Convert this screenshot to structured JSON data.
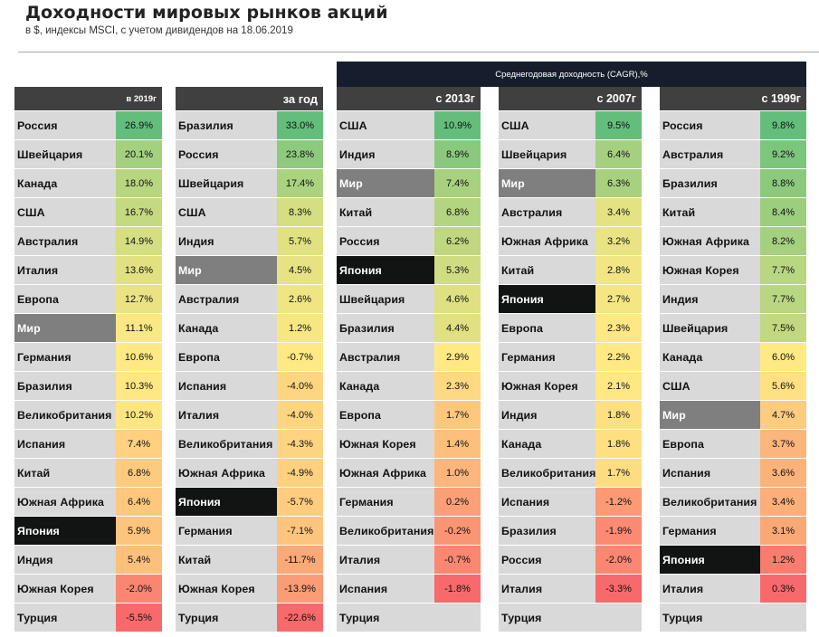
{
  "header": {
    "title": "Доходности мировых рынков акций",
    "subtitle": "в $, индексы MSCI, с учетом дивидендов на 18.06.2019",
    "cagr_label": "Среднегодовая доходность (CAGR),%"
  },
  "colors": {
    "header_bg": "#404040",
    "cagr_bg": "#161e2e",
    "name_bg": "#d9d9d9",
    "world_bg": "#7f7f7f",
    "japan_bg": "#111412",
    "scale_high": "#63be7b",
    "scale_mid": "#ffe984",
    "scale_low": "#f8696b"
  },
  "chart_data": {
    "type": "table",
    "title": "Доходности мировых рынков акций",
    "subtitle": "в $, индексы MSCI, с учетом дивидендов на 18.06.2019",
    "group_label": "Среднегодовая доходность (CAGR),%",
    "tables": [
      {
        "header": "в 2019г",
        "rows": [
          {
            "name": "Россия",
            "value": "26.9%",
            "v": 26.9
          },
          {
            "name": "Швейцария",
            "value": "20.1%",
            "v": 20.1
          },
          {
            "name": "Канада",
            "value": "18.0%",
            "v": 18.0
          },
          {
            "name": "США",
            "value": "16.7%",
            "v": 16.7
          },
          {
            "name": "Австралия",
            "value": "14.9%",
            "v": 14.9
          },
          {
            "name": "Италия",
            "value": "13.6%",
            "v": 13.6
          },
          {
            "name": "Европа",
            "value": "12.7%",
            "v": 12.7
          },
          {
            "name": "Мир",
            "value": "11.1%",
            "v": 11.1
          },
          {
            "name": "Германия",
            "value": "10.6%",
            "v": 10.6
          },
          {
            "name": "Бразилия",
            "value": "10.3%",
            "v": 10.3
          },
          {
            "name": "Великобритания",
            "value": "10.2%",
            "v": 10.2
          },
          {
            "name": "Испания",
            "value": "7.4%",
            "v": 7.4
          },
          {
            "name": "Китай",
            "value": "6.8%",
            "v": 6.8
          },
          {
            "name": "Южная Африка",
            "value": "6.4%",
            "v": 6.4
          },
          {
            "name": "Япония",
            "value": "5.9%",
            "v": 5.9
          },
          {
            "name": "Индия",
            "value": "5.4%",
            "v": 5.4
          },
          {
            "name": "Южная Корея",
            "value": "-2.0%",
            "v": -2.0
          },
          {
            "name": "Турция",
            "value": "-5.5%",
            "v": -5.5
          }
        ]
      },
      {
        "header": "за год",
        "rows": [
          {
            "name": "Бразилия",
            "value": "33.0%",
            "v": 33.0
          },
          {
            "name": "Россия",
            "value": "23.8%",
            "v": 23.8
          },
          {
            "name": "Швейцария",
            "value": "17.4%",
            "v": 17.4
          },
          {
            "name": "США",
            "value": "8.3%",
            "v": 8.3
          },
          {
            "name": "Индия",
            "value": "5.7%",
            "v": 5.7
          },
          {
            "name": "Мир",
            "value": "4.5%",
            "v": 4.5
          },
          {
            "name": "Австралия",
            "value": "2.6%",
            "v": 2.6
          },
          {
            "name": "Канада",
            "value": "1.2%",
            "v": 1.2
          },
          {
            "name": "Европа",
            "value": "-0.7%",
            "v": -0.7
          },
          {
            "name": "Испания",
            "value": "-4.0%",
            "v": -4.0
          },
          {
            "name": "Италия",
            "value": "-4.0%",
            "v": -4.0
          },
          {
            "name": "Великобритания",
            "value": "-4.3%",
            "v": -4.3
          },
          {
            "name": "Южная Африка",
            "value": "-4.9%",
            "v": -4.9
          },
          {
            "name": "Япония",
            "value": "-5.7%",
            "v": -5.7
          },
          {
            "name": "Германия",
            "value": "-7.1%",
            "v": -7.1
          },
          {
            "name": "Китай",
            "value": "-11.7%",
            "v": -11.7
          },
          {
            "name": "Южная Корея",
            "value": "-13.9%",
            "v": -13.9
          },
          {
            "name": "Турция",
            "value": "-22.6%",
            "v": -22.6
          }
        ]
      },
      {
        "header": "с 2013г",
        "rows": [
          {
            "name": "США",
            "value": "10.9%",
            "v": 10.9
          },
          {
            "name": "Индия",
            "value": "8.9%",
            "v": 8.9
          },
          {
            "name": "Мир",
            "value": "7.4%",
            "v": 7.4
          },
          {
            "name": "Китай",
            "value": "6.8%",
            "v": 6.8
          },
          {
            "name": "Россия",
            "value": "6.2%",
            "v": 6.2
          },
          {
            "name": "Япония",
            "value": "5.3%",
            "v": 5.3
          },
          {
            "name": "Швейцария",
            "value": "4.6%",
            "v": 4.6
          },
          {
            "name": "Бразилия",
            "value": "4.4%",
            "v": 4.4
          },
          {
            "name": "Австралия",
            "value": "2.9%",
            "v": 2.9
          },
          {
            "name": "Канада",
            "value": "2.3%",
            "v": 2.3
          },
          {
            "name": "Европа",
            "value": "1.7%",
            "v": 1.7
          },
          {
            "name": "Южная Корея",
            "value": "1.4%",
            "v": 1.4
          },
          {
            "name": "Южная Африка",
            "value": "1.0%",
            "v": 1.0
          },
          {
            "name": "Германия",
            "value": "0.2%",
            "v": 0.2
          },
          {
            "name": "Великобритания",
            "value": "-0.2%",
            "v": -0.2
          },
          {
            "name": "Италия",
            "value": "-0.7%",
            "v": -0.7
          },
          {
            "name": "Испания",
            "value": "-1.8%",
            "v": -1.8
          },
          {
            "name": "Турция",
            "value": "",
            "v": null
          }
        ]
      },
      {
        "header": "с 2007г",
        "rows": [
          {
            "name": "США",
            "value": "9.5%",
            "v": 9.5
          },
          {
            "name": "Швейцария",
            "value": "6.4%",
            "v": 6.4
          },
          {
            "name": "Мир",
            "value": "6.3%",
            "v": 6.3
          },
          {
            "name": "Австралия",
            "value": "3.4%",
            "v": 3.4
          },
          {
            "name": "Южная Африка",
            "value": "3.2%",
            "v": 3.2
          },
          {
            "name": "Китай",
            "value": "2.8%",
            "v": 2.8
          },
          {
            "name": "Япония",
            "value": "2.7%",
            "v": 2.7
          },
          {
            "name": "Европа",
            "value": "2.3%",
            "v": 2.3
          },
          {
            "name": "Германия",
            "value": "2.2%",
            "v": 2.2
          },
          {
            "name": "Южная Корея",
            "value": "2.1%",
            "v": 2.1
          },
          {
            "name": "Индия",
            "value": "1.8%",
            "v": 1.8
          },
          {
            "name": "Канада",
            "value": "1.8%",
            "v": 1.8
          },
          {
            "name": "Великобритания",
            "value": "1.7%",
            "v": 1.7
          },
          {
            "name": "Испания",
            "value": "-1.2%",
            "v": -1.2
          },
          {
            "name": "Бразилия",
            "value": "-1.9%",
            "v": -1.9
          },
          {
            "name": "Россия",
            "value": "-2.0%",
            "v": -2.0
          },
          {
            "name": "Италия",
            "value": "-3.3%",
            "v": -3.3
          },
          {
            "name": "Турция",
            "value": "",
            "v": null
          }
        ]
      },
      {
        "header": "с 1999г",
        "rows": [
          {
            "name": "Россия",
            "value": "9.8%",
            "v": 9.8
          },
          {
            "name": "Австралия",
            "value": "9.2%",
            "v": 9.2
          },
          {
            "name": "Бразилия",
            "value": "8.8%",
            "v": 8.8
          },
          {
            "name": "Китай",
            "value": "8.4%",
            "v": 8.4
          },
          {
            "name": "Южная Африка",
            "value": "8.2%",
            "v": 8.2
          },
          {
            "name": "Южная Корея",
            "value": "7.7%",
            "v": 7.7
          },
          {
            "name": "Индия",
            "value": "7.7%",
            "v": 7.7
          },
          {
            "name": "Швейцария",
            "value": "7.5%",
            "v": 7.5
          },
          {
            "name": "Канада",
            "value": "6.0%",
            "v": 6.0
          },
          {
            "name": "США",
            "value": "5.6%",
            "v": 5.6
          },
          {
            "name": "Мир",
            "value": "4.7%",
            "v": 4.7
          },
          {
            "name": "Европа",
            "value": "3.7%",
            "v": 3.7
          },
          {
            "name": "Испания",
            "value": "3.6%",
            "v": 3.6
          },
          {
            "name": "Великобритания",
            "value": "3.4%",
            "v": 3.4
          },
          {
            "name": "Германия",
            "value": "3.1%",
            "v": 3.1
          },
          {
            "name": "Япония",
            "value": "1.2%",
            "v": 1.2
          },
          {
            "name": "Италия",
            "value": "0.3%",
            "v": 0.3
          },
          {
            "name": "Турция",
            "value": "",
            "v": null
          }
        ]
      }
    ]
  }
}
